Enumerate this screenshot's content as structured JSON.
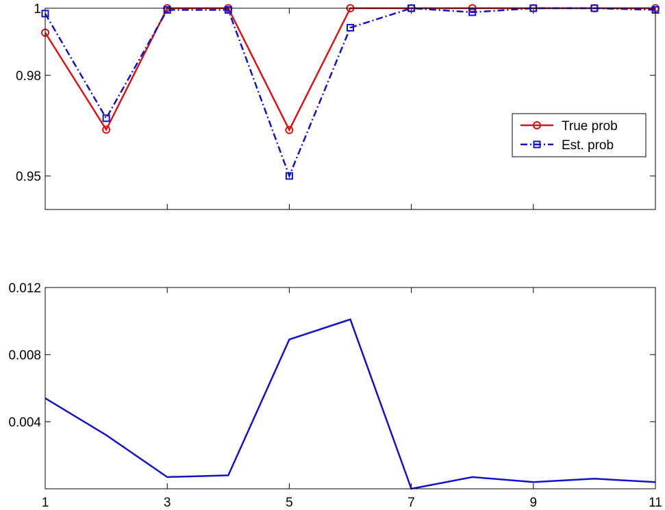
{
  "chart_data": [
    {
      "type": "line",
      "x": [
        1,
        2,
        3,
        4,
        5,
        6,
        7,
        8,
        9,
        10,
        11
      ],
      "xlim": [
        1,
        11
      ],
      "ylim": [
        0.94,
        1.0
      ],
      "yticks": [
        0.95,
        0.98,
        1
      ],
      "ytick_labels": [
        "0.95",
        "0.98",
        "1"
      ],
      "xticks": [
        1,
        3,
        5,
        7,
        9,
        11
      ],
      "xtick_labels": [],
      "title": "",
      "xlabel": "",
      "ylabel": "",
      "legend_position": "center-right",
      "series": [
        {
          "name": "True prob",
          "color": "#dd1111",
          "line_style": "solid",
          "marker": "circle",
          "values": [
            0.9927,
            0.9638,
            1.0,
            1.0,
            0.9637,
            1.0,
            1.0,
            1.0,
            1.0,
            1.0,
            1.0
          ]
        },
        {
          "name": "Est. prob",
          "color": "#1111cc",
          "line_style": "dash-dot",
          "marker": "square",
          "values": [
            0.9984,
            0.9672,
            0.9995,
            0.9995,
            0.95,
            0.9942,
            1.0,
            0.9988,
            1.0,
            1.0,
            0.9995
          ]
        }
      ]
    },
    {
      "type": "line",
      "x": [
        1,
        2,
        3,
        4,
        5,
        6,
        7,
        8,
        9,
        10,
        11
      ],
      "xlim": [
        1,
        11
      ],
      "ylim": [
        0,
        0.012
      ],
      "yticks": [
        0.004,
        0.008,
        0.012
      ],
      "ytick_labels": [
        "0.004",
        "0.008",
        "0.012"
      ],
      "xticks": [
        1,
        3,
        5,
        7,
        9,
        11
      ],
      "xtick_labels": [
        "1",
        "3",
        "5",
        "7",
        "9",
        "11"
      ],
      "title": "",
      "xlabel": "",
      "ylabel": "",
      "series": [
        {
          "color": "#1111cc",
          "line_style": "solid",
          "values": [
            0.0054,
            0.0032,
            0.0007,
            0.0008,
            0.0089,
            0.0101,
            0.0,
            0.0007,
            0.0004,
            0.0006,
            0.0004
          ]
        }
      ]
    }
  ]
}
